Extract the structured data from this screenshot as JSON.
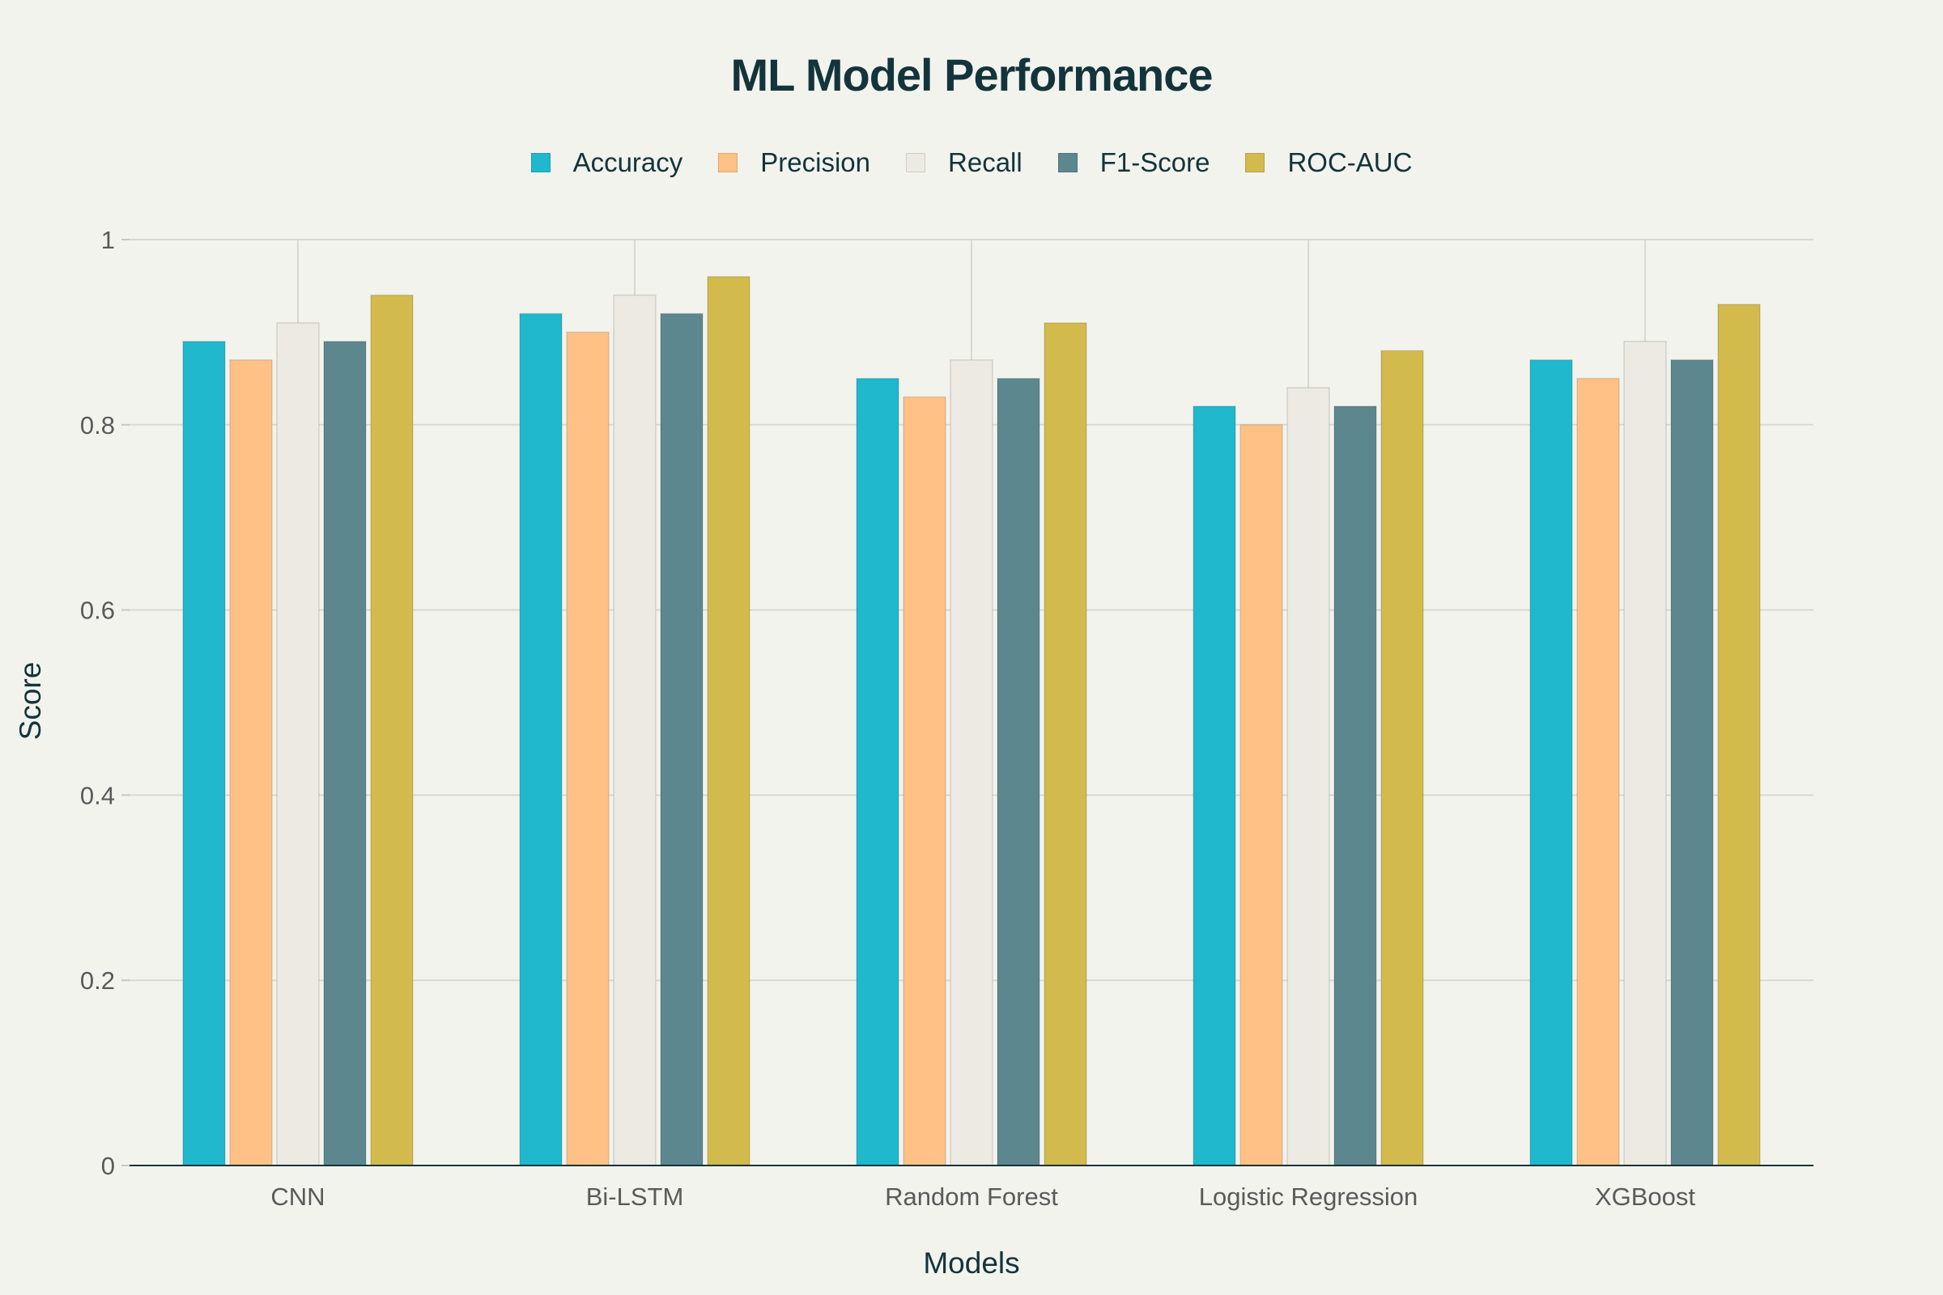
{
  "chart_data": {
    "type": "bar",
    "title": "ML Model Performance",
    "xlabel": "Models",
    "ylabel": "Score",
    "ylim": [
      0,
      1
    ],
    "yticks": [
      0,
      0.2,
      0.4,
      0.6,
      0.8,
      1
    ],
    "ytick_labels": [
      "0",
      "0.2",
      "0.4",
      "0.6",
      "0.8",
      "1"
    ],
    "grid": true,
    "legend_placement": "top-center",
    "categories": [
      "CNN",
      "Bi-LSTM",
      "Random Forest",
      "Logistic Regression",
      "XGBoost"
    ],
    "series": [
      {
        "name": "Accuracy",
        "color": "#1fb8cd",
        "values": [
          0.89,
          0.92,
          0.85,
          0.82,
          0.87
        ]
      },
      {
        "name": "Precision",
        "color": "#ffc185",
        "values": [
          0.87,
          0.9,
          0.83,
          0.8,
          0.85
        ]
      },
      {
        "name": "Recall",
        "color": "#eceae2",
        "values": [
          0.91,
          0.94,
          0.87,
          0.84,
          0.89
        ]
      },
      {
        "name": "F1-Score",
        "color": "#5d878f",
        "values": [
          0.89,
          0.92,
          0.85,
          0.82,
          0.87
        ]
      },
      {
        "name": "ROC-AUC",
        "color": "#d2ba4c",
        "values": [
          0.94,
          0.96,
          0.91,
          0.88,
          0.93
        ]
      }
    ]
  }
}
